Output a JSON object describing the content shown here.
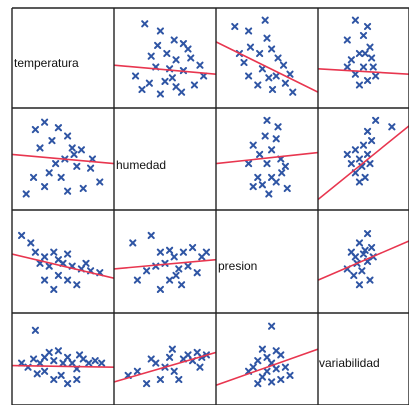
{
  "chart_data": {
    "type": "scatter",
    "plot_kind": "scatterplot-matrix",
    "variables": [
      "temperatura",
      "humedad",
      "presion",
      "variabilidad"
    ],
    "grid": false,
    "colors": {
      "points": "#2f55a4",
      "fit_line": "#e8364f",
      "border": "#222222"
    },
    "panels": [
      {
        "row": 0,
        "col": 1,
        "points": [
          [
            0.28,
            0.88
          ],
          [
            0.45,
            0.8
          ],
          [
            0.6,
            0.7
          ],
          [
            0.42,
            0.64
          ],
          [
            0.7,
            0.66
          ],
          [
            0.52,
            0.55
          ],
          [
            0.35,
            0.52
          ],
          [
            0.62,
            0.48
          ],
          [
            0.78,
            0.5
          ],
          [
            0.4,
            0.4
          ],
          [
            0.55,
            0.38
          ],
          [
            0.7,
            0.36
          ],
          [
            0.88,
            0.42
          ],
          [
            0.92,
            0.3
          ],
          [
            0.5,
            0.24
          ],
          [
            0.33,
            0.22
          ],
          [
            0.62,
            0.18
          ],
          [
            0.18,
            0.3
          ],
          [
            0.25,
            0.15
          ],
          [
            0.82,
            0.2
          ],
          [
            0.45,
            0.1
          ],
          [
            0.68,
            0.12
          ],
          [
            0.75,
            0.6
          ],
          [
            0.58,
            0.28
          ]
        ],
        "fit": [
          [
            0.0,
            0.42
          ],
          [
            1.0,
            0.32
          ]
        ]
      },
      {
        "row": 0,
        "col": 2,
        "points": [
          [
            0.15,
            0.85
          ],
          [
            0.3,
            0.8
          ],
          [
            0.48,
            0.92
          ],
          [
            0.5,
            0.72
          ],
          [
            0.32,
            0.62
          ],
          [
            0.42,
            0.55
          ],
          [
            0.55,
            0.6
          ],
          [
            0.62,
            0.5
          ],
          [
            0.68,
            0.42
          ],
          [
            0.2,
            0.55
          ],
          [
            0.25,
            0.45
          ],
          [
            0.45,
            0.38
          ],
          [
            0.52,
            0.28
          ],
          [
            0.6,
            0.3
          ],
          [
            0.7,
            0.22
          ],
          [
            0.78,
            0.12
          ],
          [
            0.4,
            0.2
          ],
          [
            0.3,
            0.3
          ],
          [
            0.75,
            0.32
          ],
          [
            0.56,
            0.15
          ]
        ],
        "fit": [
          [
            0.0,
            0.68
          ],
          [
            1.0,
            0.12
          ]
        ]
      },
      {
        "row": 0,
        "col": 3,
        "points": [
          [
            0.4,
            0.92
          ],
          [
            0.55,
            0.85
          ],
          [
            0.3,
            0.7
          ],
          [
            0.5,
            0.75
          ],
          [
            0.58,
            0.62
          ],
          [
            0.45,
            0.55
          ],
          [
            0.6,
            0.5
          ],
          [
            0.35,
            0.48
          ],
          [
            0.5,
            0.4
          ],
          [
            0.62,
            0.4
          ],
          [
            0.4,
            0.32
          ],
          [
            0.55,
            0.25
          ],
          [
            0.45,
            0.2
          ],
          [
            0.65,
            0.3
          ],
          [
            0.3,
            0.4
          ],
          [
            0.52,
            0.55
          ]
        ],
        "fit": [
          [
            0.0,
            0.38
          ],
          [
            1.0,
            0.32
          ]
        ]
      },
      {
        "row": 1,
        "col": 0,
        "points": [
          [
            0.2,
            0.82
          ],
          [
            0.3,
            0.9
          ],
          [
            0.45,
            0.84
          ],
          [
            0.55,
            0.75
          ],
          [
            0.38,
            0.7
          ],
          [
            0.25,
            0.62
          ],
          [
            0.62,
            0.55
          ],
          [
            0.7,
            0.6
          ],
          [
            0.52,
            0.5
          ],
          [
            0.42,
            0.45
          ],
          [
            0.65,
            0.42
          ],
          [
            0.8,
            0.4
          ],
          [
            0.9,
            0.25
          ],
          [
            0.3,
            0.2
          ],
          [
            0.18,
            0.3
          ],
          [
            0.55,
            0.15
          ],
          [
            0.72,
            0.18
          ],
          [
            0.1,
            0.12
          ],
          [
            0.82,
            0.5
          ],
          [
            0.48,
            0.3
          ],
          [
            0.6,
            0.62
          ],
          [
            0.35,
            0.35
          ]
        ],
        "fit": [
          [
            0.0,
            0.55
          ],
          [
            1.0,
            0.45
          ]
        ]
      },
      {
        "row": 1,
        "col": 2,
        "points": [
          [
            0.5,
            0.92
          ],
          [
            0.62,
            0.85
          ],
          [
            0.48,
            0.75
          ],
          [
            0.6,
            0.72
          ],
          [
            0.35,
            0.65
          ],
          [
            0.55,
            0.6
          ],
          [
            0.42,
            0.55
          ],
          [
            0.65,
            0.5
          ],
          [
            0.3,
            0.45
          ],
          [
            0.5,
            0.45
          ],
          [
            0.7,
            0.42
          ],
          [
            0.4,
            0.3
          ],
          [
            0.55,
            0.3
          ],
          [
            0.45,
            0.22
          ],
          [
            0.6,
            0.25
          ],
          [
            0.35,
            0.2
          ],
          [
            0.72,
            0.18
          ],
          [
            0.52,
            0.12
          ],
          [
            0.66,
            0.35
          ]
        ],
        "fit": [
          [
            0.0,
            0.45
          ],
          [
            1.0,
            0.57
          ]
        ]
      },
      {
        "row": 1,
        "col": 3,
        "points": [
          [
            0.65,
            0.92
          ],
          [
            0.55,
            0.8
          ],
          [
            0.6,
            0.7
          ],
          [
            0.5,
            0.65
          ],
          [
            0.4,
            0.6
          ],
          [
            0.55,
            0.55
          ],
          [
            0.45,
            0.5
          ],
          [
            0.35,
            0.45
          ],
          [
            0.48,
            0.42
          ],
          [
            0.4,
            0.35
          ],
          [
            0.52,
            0.3
          ],
          [
            0.45,
            0.25
          ],
          [
            0.3,
            0.55
          ],
          [
            0.58,
            0.45
          ],
          [
            0.85,
            0.85
          ]
        ],
        "fit": [
          [
            0.0,
            0.06
          ],
          [
            1.0,
            0.86
          ]
        ]
      },
      {
        "row": 2,
        "col": 0,
        "points": [
          [
            0.05,
            0.78
          ],
          [
            0.15,
            0.7
          ],
          [
            0.2,
            0.6
          ],
          [
            0.3,
            0.55
          ],
          [
            0.4,
            0.6
          ],
          [
            0.45,
            0.52
          ],
          [
            0.5,
            0.48
          ],
          [
            0.55,
            0.58
          ],
          [
            0.6,
            0.45
          ],
          [
            0.35,
            0.45
          ],
          [
            0.25,
            0.48
          ],
          [
            0.7,
            0.42
          ],
          [
            0.8,
            0.4
          ],
          [
            0.9,
            0.38
          ],
          [
            0.45,
            0.35
          ],
          [
            0.55,
            0.3
          ],
          [
            0.65,
            0.25
          ],
          [
            0.4,
            0.2
          ],
          [
            0.3,
            0.3
          ],
          [
            0.75,
            0.48
          ]
        ],
        "fit": [
          [
            0.0,
            0.58
          ],
          [
            1.0,
            0.32
          ]
        ]
      },
      {
        "row": 2,
        "col": 1,
        "points": [
          [
            0.15,
            0.7
          ],
          [
            0.35,
            0.78
          ],
          [
            0.45,
            0.6
          ],
          [
            0.55,
            0.62
          ],
          [
            0.6,
            0.55
          ],
          [
            0.7,
            0.6
          ],
          [
            0.8,
            0.65
          ],
          [
            0.9,
            0.55
          ],
          [
            0.5,
            0.48
          ],
          [
            0.4,
            0.45
          ],
          [
            0.65,
            0.42
          ],
          [
            0.75,
            0.45
          ],
          [
            0.3,
            0.4
          ],
          [
            0.55,
            0.3
          ],
          [
            0.68,
            0.25
          ],
          [
            0.45,
            0.2
          ],
          [
            0.85,
            0.38
          ],
          [
            0.95,
            0.6
          ],
          [
            0.2,
            0.3
          ],
          [
            0.62,
            0.35
          ]
        ],
        "fit": [
          [
            0.0,
            0.42
          ],
          [
            1.0,
            0.52
          ]
        ]
      },
      {
        "row": 2,
        "col": 3,
        "points": [
          [
            0.55,
            0.8
          ],
          [
            0.45,
            0.7
          ],
          [
            0.6,
            0.65
          ],
          [
            0.5,
            0.58
          ],
          [
            0.35,
            0.6
          ],
          [
            0.55,
            0.5
          ],
          [
            0.42,
            0.48
          ],
          [
            0.3,
            0.42
          ],
          [
            0.48,
            0.4
          ],
          [
            0.38,
            0.35
          ],
          [
            0.58,
            0.3
          ],
          [
            0.45,
            0.25
          ],
          [
            0.52,
            0.62
          ],
          [
            0.62,
            0.55
          ],
          [
            0.4,
            0.55
          ]
        ],
        "fit": [
          [
            0.0,
            0.3
          ],
          [
            1.0,
            0.72
          ]
        ]
      },
      {
        "row": 3,
        "col": 0,
        "points": [
          [
            0.2,
            0.85
          ],
          [
            0.05,
            0.45
          ],
          [
            0.12,
            0.4
          ],
          [
            0.18,
            0.5
          ],
          [
            0.25,
            0.45
          ],
          [
            0.3,
            0.52
          ],
          [
            0.35,
            0.58
          ],
          [
            0.4,
            0.48
          ],
          [
            0.45,
            0.6
          ],
          [
            0.5,
            0.45
          ],
          [
            0.55,
            0.52
          ],
          [
            0.6,
            0.45
          ],
          [
            0.65,
            0.38
          ],
          [
            0.72,
            0.5
          ],
          [
            0.78,
            0.45
          ],
          [
            0.85,
            0.48
          ],
          [
            0.92,
            0.45
          ],
          [
            0.3,
            0.35
          ],
          [
            0.4,
            0.25
          ],
          [
            0.55,
            0.2
          ],
          [
            0.65,
            0.25
          ],
          [
            0.48,
            0.3
          ],
          [
            0.22,
            0.32
          ],
          [
            0.68,
            0.55
          ]
        ],
        "fit": [
          [
            0.0,
            0.42
          ],
          [
            1.0,
            0.4
          ]
        ]
      },
      {
        "row": 3,
        "col": 1,
        "points": [
          [
            0.1,
            0.3
          ],
          [
            0.2,
            0.35
          ],
          [
            0.3,
            0.2
          ],
          [
            0.4,
            0.45
          ],
          [
            0.5,
            0.4
          ],
          [
            0.55,
            0.52
          ],
          [
            0.6,
            0.35
          ],
          [
            0.7,
            0.5
          ],
          [
            0.75,
            0.55
          ],
          [
            0.8,
            0.48
          ],
          [
            0.85,
            0.58
          ],
          [
            0.9,
            0.52
          ],
          [
            0.95,
            0.55
          ],
          [
            0.45,
            0.25
          ],
          [
            0.65,
            0.25
          ],
          [
            0.35,
            0.5
          ],
          [
            0.58,
            0.62
          ],
          [
            0.88,
            0.4
          ]
        ],
        "fit": [
          [
            0.0,
            0.22
          ],
          [
            1.0,
            0.58
          ]
        ]
      },
      {
        "row": 3,
        "col": 2,
        "points": [
          [
            0.55,
            0.9
          ],
          [
            0.45,
            0.62
          ],
          [
            0.6,
            0.6
          ],
          [
            0.65,
            0.55
          ],
          [
            0.5,
            0.52
          ],
          [
            0.4,
            0.48
          ],
          [
            0.55,
            0.45
          ],
          [
            0.35,
            0.4
          ],
          [
            0.5,
            0.35
          ],
          [
            0.6,
            0.38
          ],
          [
            0.7,
            0.4
          ],
          [
            0.45,
            0.28
          ],
          [
            0.55,
            0.22
          ],
          [
            0.65,
            0.25
          ],
          [
            0.4,
            0.2
          ],
          [
            0.75,
            0.3
          ],
          [
            0.3,
            0.35
          ]
        ],
        "fit": [
          [
            0.0,
            0.18
          ],
          [
            1.0,
            0.62
          ]
        ]
      }
    ]
  }
}
